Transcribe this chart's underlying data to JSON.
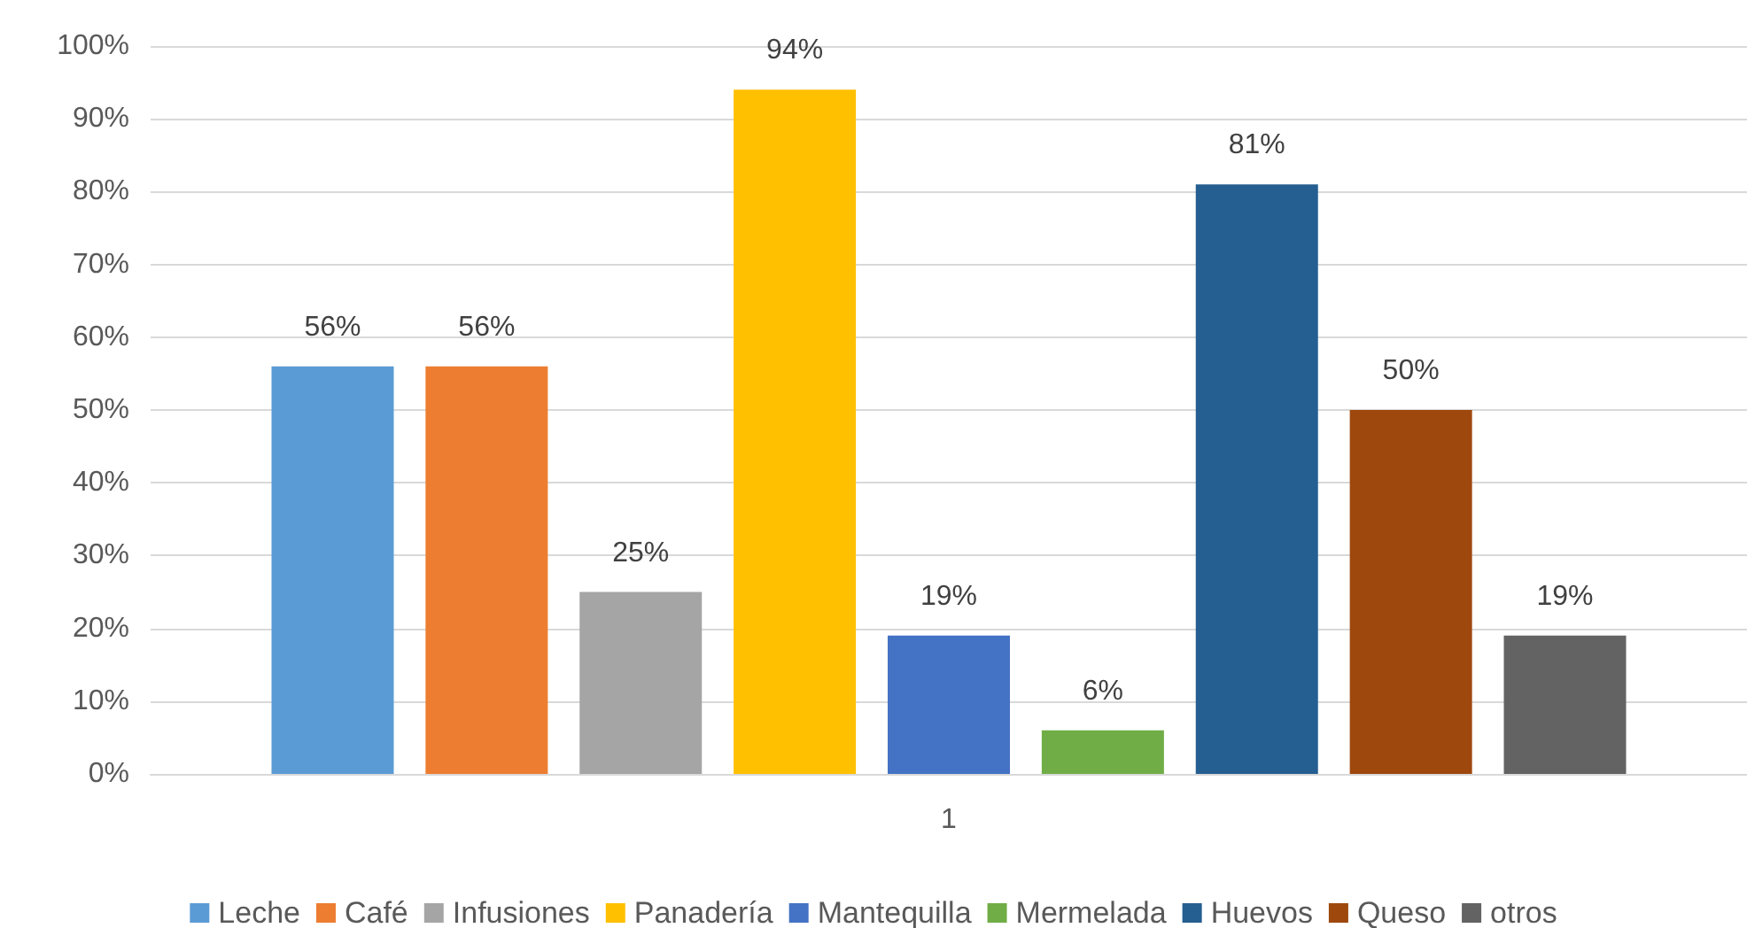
{
  "chart_data": {
    "type": "bar",
    "categories": [
      "1"
    ],
    "series": [
      {
        "name": "Leche",
        "color": "#5b9bd5",
        "values": [
          56
        ],
        "value_labels": [
          "56%"
        ]
      },
      {
        "name": "Café",
        "color": "#ed7d31",
        "values": [
          56
        ],
        "value_labels": [
          "56%"
        ]
      },
      {
        "name": "Infusiones",
        "color": "#a5a5a5",
        "values": [
          25
        ],
        "value_labels": [
          "25%"
        ]
      },
      {
        "name": "Panadería",
        "color": "#ffc000",
        "values": [
          94
        ],
        "value_labels": [
          "94%"
        ]
      },
      {
        "name": "Mantequilla",
        "color": "#4472c4",
        "values": [
          19
        ],
        "value_labels": [
          "19%"
        ]
      },
      {
        "name": "Mermelada",
        "color": "#70ad47",
        "values": [
          6
        ],
        "value_labels": [
          "6%"
        ]
      },
      {
        "name": "Huevos",
        "color": "#255e91",
        "values": [
          81
        ],
        "value_labels": [
          "81%"
        ]
      },
      {
        "name": "Queso",
        "color": "#9e480e",
        "values": [
          50
        ],
        "value_labels": [
          "50%"
        ]
      },
      {
        "name": "otros",
        "color": "#636363",
        "values": [
          19
        ],
        "value_labels": [
          "19%"
        ]
      }
    ],
    "ylim": [
      0,
      100
    ],
    "yticks": [
      {
        "value": 0,
        "label": "0%"
      },
      {
        "value": 10,
        "label": "10%"
      },
      {
        "value": 20,
        "label": "20%"
      },
      {
        "value": 30,
        "label": "30%"
      },
      {
        "value": 40,
        "label": "40%"
      },
      {
        "value": 50,
        "label": "50%"
      },
      {
        "value": 60,
        "label": "60%"
      },
      {
        "value": 70,
        "label": "70%"
      },
      {
        "value": 80,
        "label": "80%"
      },
      {
        "value": 90,
        "label": "90%"
      },
      {
        "value": 100,
        "label": "100%"
      }
    ],
    "grid": "y",
    "legend": "bottom"
  }
}
